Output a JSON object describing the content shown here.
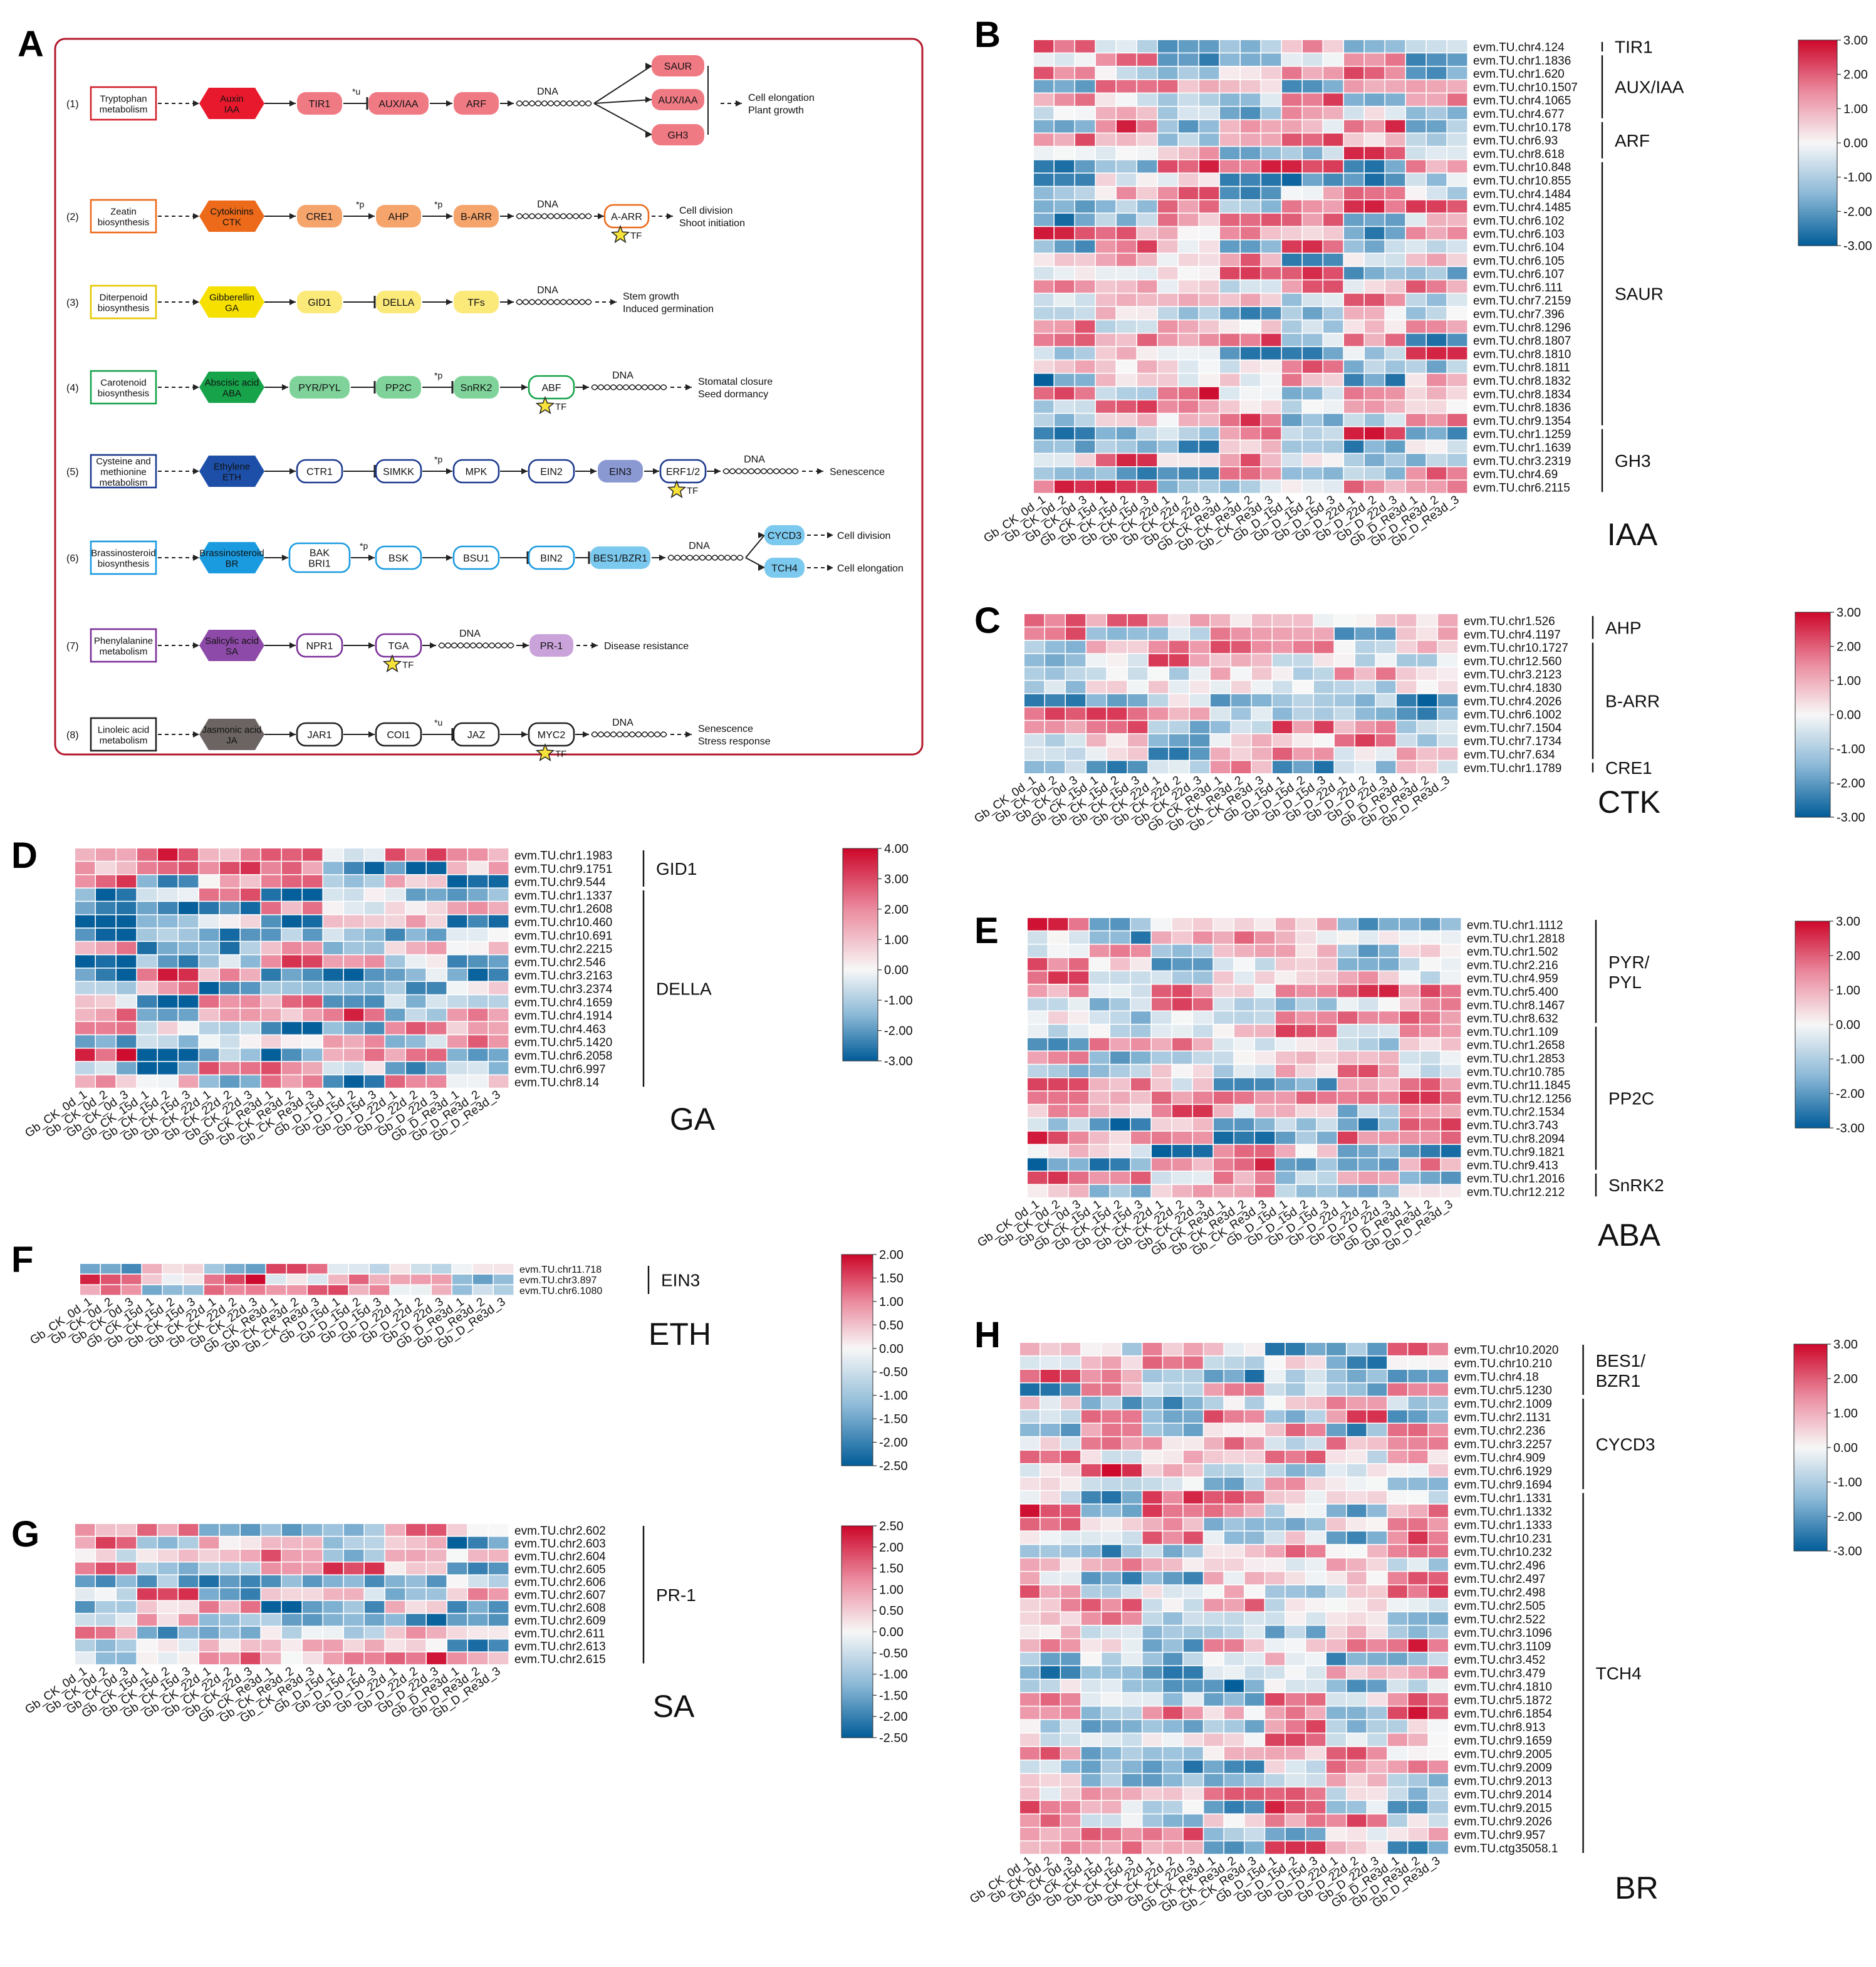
{
  "panel_labels": [
    "A",
    "B",
    "C",
    "D",
    "E",
    "F",
    "G",
    "H"
  ],
  "samples": [
    "Gb_CK_0d_1",
    "Gb_CK_0d_2",
    "Gb_CK_0d_3",
    "Gb_CK_15d_1",
    "Gb_CK_15d_2",
    "Gb_CK_15d_3",
    "Gb_CK_22d_1",
    "Gb_CK_22d_2",
    "Gb_CK_22d_3",
    "Gb_CK_Re3d_1",
    "Gb_CK_Re3d_2",
    "Gb_CK_Re3d_3",
    "Gb_D_15d_1",
    "Gb_D_15d_2",
    "Gb_D_15d_3",
    "Gb_D_22d_1",
    "Gb_D_22d_2",
    "Gb_D_22d_3",
    "Gb_D_Re3d_1",
    "Gb_D_Re3d_2",
    "Gb_D_Re3d_3"
  ],
  "pathways": [
    {
      "num": "(1)",
      "source": "Tryptophan\nmetabolism",
      "hormone": "Auxin\nIAA",
      "hcolor": "#e8192c",
      "ecolor": "#f07a84",
      "outline": "#d21f2b",
      "filled": true,
      "nodes": [
        "TIR1",
        "*u",
        "AUX/IAA",
        "ARF"
      ],
      "targets": [
        "SAUR",
        "AUX/IAA",
        "GH3"
      ],
      "tf": null,
      "effect": "Cell elongation\nPlant growth"
    },
    {
      "num": "(2)",
      "source": "Zeatin\nbiosynthesis",
      "hormone": "Cytokinins\nCTK",
      "hcolor": "#ec6a1a",
      "ecolor": "#f5a46c",
      "outline": "#ec6a1a",
      "filled": true,
      "nodes": [
        "CRE1",
        "*p",
        "AHP",
        "*p",
        "B-ARR"
      ],
      "targets": [
        "A-ARR"
      ],
      "tf": "A-ARR",
      "effect": "Cell division\nShoot initiation"
    },
    {
      "num": "(3)",
      "source": "Diterpenoid\nbiosynthesis",
      "hormone": "Gibberellin\nGA",
      "hcolor": "#f5e000",
      "ecolor": "#fbe97a",
      "outline": "#e6c800",
      "filled": true,
      "nodes": [
        "GID1",
        "DELLA",
        "TFs"
      ],
      "targets": [],
      "tf": null,
      "effect": "Stem growth\nInduced germination"
    },
    {
      "num": "(4)",
      "source": "Carotenoid\nbiosynthesis",
      "hormone": "Abscisic acid\nABA",
      "hcolor": "#16a34a",
      "ecolor": "#7fd39a",
      "outline": "#16a34a",
      "filled": true,
      "nodes": [
        "PYR/PYL",
        "PP2C",
        "*p",
        "SnRK2",
        "ABF"
      ],
      "targets": [],
      "tf": "ABF",
      "effect": "Stomatal closure\nSeed dormancy"
    },
    {
      "num": "(5)",
      "source": "Cysteine and\nmethionine\nmetabolism",
      "hormone": "Ethylene\nETH",
      "hcolor": "#1d4fa8",
      "ecolor": "#8b99d3",
      "outline": "#1d3a8f",
      "filled": false,
      "nodes": [
        "CTR1",
        "SIMKK",
        "*p",
        "MPK",
        "EIN2",
        "EIN3",
        "ERF1/2"
      ],
      "targets": [],
      "tf": "ERF1/2",
      "effect": "Senescence"
    },
    {
      "num": "(6)",
      "source": "Brassinosteroid\nbiosynthesis",
      "hormone": "Brassinosteroid\nBR",
      "hcolor": "#1a9be0",
      "ecolor": "#7cc9ef",
      "outline": "#1a9be0",
      "filled": false,
      "nodes": [
        "BAK\nBRI1",
        "*p",
        "BSK",
        "BSU1",
        "BIN2",
        "BES1/BZR1"
      ],
      "targets": [
        "CYCD3",
        "TCH4"
      ],
      "tf": null,
      "effect": "Cell division|Cell elongation"
    },
    {
      "num": "(7)",
      "source": "Phenylalanine\nmetabolism",
      "hormone": "Salicylic acid\nSA",
      "hcolor": "#8e4aa8",
      "ecolor": "#c9a3d9",
      "outline": "#7a2f98",
      "filled": false,
      "nodes": [
        "NPR1",
        "TGA"
      ],
      "targets": [
        "PR-1"
      ],
      "tf": "TGA",
      "effect": "Disease resistance"
    },
    {
      "num": "(8)",
      "source": "Linoleic acid\nmetabolism",
      "hormone": "Jasmonic acid\nJA",
      "hcolor": "#6b6462",
      "ecolor": "#aaa",
      "outline": "#222",
      "filled": false,
      "nodes": [
        "JAR1",
        "COI1",
        "*u",
        "JAZ",
        "MYC2"
      ],
      "targets": [],
      "tf": "MYC2",
      "effect": "Senescence\nStress response"
    }
  ],
  "dna_label": "DNA",
  "tf_label": "TF",
  "panel_a_effects": {
    "p1": [
      "Cell elongation",
      "Plant growth"
    ],
    "p2": [
      "Cell division",
      "Shoot initiation"
    ],
    "p3": [
      "Stem growth",
      "Induced germination"
    ],
    "p4": [
      "Stomatal closure",
      "Seed dormancy"
    ],
    "p5": [
      "Senescence"
    ],
    "p6": [
      "Cell division",
      "Cell elongation"
    ],
    "p7": [
      "Disease resistance"
    ],
    "p8": [
      "Senescence",
      "Stress response"
    ]
  },
  "chart_data": [
    {
      "panel": "B",
      "type": "heatmap",
      "title": "IAA",
      "vmin": -3.0,
      "vmax": 3.0,
      "colorbar_ticks": [
        "3.00",
        "2.00",
        "1.00",
        "0.00",
        "-1.00",
        "-2.00",
        "-3.00"
      ],
      "genes": [
        "evm.TU.chr4.124",
        "evm.TU.chr1.1836",
        "evm.TU.chr1.620",
        "evm.TU.chr10.1507",
        "evm.TU.chr4.1065",
        "evm.TU.chr4.677",
        "evm.TU.chr10.178",
        "evm.TU.chr6.93",
        "evm.TU.chr8.618",
        "evm.TU.chr10.848",
        "evm.TU.chr10.855",
        "evm.TU.chr4.1484",
        "evm.TU.chr4.1485",
        "evm.TU.chr6.102",
        "evm.TU.chr6.103",
        "evm.TU.chr6.104",
        "evm.TU.chr6.105",
        "evm.TU.chr6.107",
        "evm.TU.chr6.111",
        "evm.TU.chr7.2159",
        "evm.TU.chr7.396",
        "evm.TU.chr8.1296",
        "evm.TU.chr8.1807",
        "evm.TU.chr8.1810",
        "evm.TU.chr8.1811",
        "evm.TU.chr8.1832",
        "evm.TU.chr8.1834",
        "evm.TU.chr8.1836",
        "evm.TU.chr9.1354",
        "evm.TU.chr1.1259",
        "evm.TU.chr1.1639",
        "evm.TU.chr3.2319",
        "evm.TU.chr4.69",
        "evm.TU.chr6.2115"
      ],
      "groups": [
        {
          "name": "TIR1",
          "start": 0,
          "end": 0
        },
        {
          "name": "AUX/IAA",
          "start": 1,
          "end": 5
        },
        {
          "name": "ARF",
          "start": 6,
          "end": 8
        },
        {
          "name": "SAUR",
          "start": 9,
          "end": 28
        },
        {
          "name": "GH3",
          "start": 29,
          "end": 33
        }
      ],
      "seed": 11
    },
    {
      "panel": "C",
      "type": "heatmap",
      "title": "CTK",
      "vmin": -3.0,
      "vmax": 3.0,
      "colorbar_ticks": [
        "3.00",
        "2.00",
        "1.00",
        "0.00",
        "-1.00",
        "-2.00",
        "-3.00"
      ],
      "genes": [
        "evm.TU.chr1.526",
        "evm.TU.chr4.1197",
        "evm.TU.chr10.1727",
        "evm.TU.chr12.560",
        "evm.TU.chr3.2123",
        "evm.TU.chr4.1830",
        "evm.TU.chr4.2026",
        "evm.TU.chr6.1002",
        "evm.TU.chr7.1504",
        "evm.TU.chr7.1734",
        "evm.TU.chr7.634",
        "evm.TU.chr1.1789"
      ],
      "groups": [
        {
          "name": "AHP",
          "start": 0,
          "end": 1
        },
        {
          "name": "B-ARR",
          "start": 2,
          "end": 10
        },
        {
          "name": "CRE1",
          "start": 11,
          "end": 11
        }
      ],
      "seed": 23
    },
    {
      "panel": "D",
      "type": "heatmap",
      "title": "GA",
      "vmin": -3.0,
      "vmax": 4.0,
      "colorbar_ticks": [
        "4.00",
        "3.00",
        "2.00",
        "1.00",
        "0.00",
        "-1.00",
        "-2.00",
        "-3.00"
      ],
      "genes": [
        "evm.TU.chr1.1983",
        "evm.TU.chr9.1751",
        "evm.TU.chr9.544",
        "evm.TU.chr1.1337",
        "evm.TU.chr1.2608",
        "evm.TU.chr10.460",
        "evm.TU.chr10.691",
        "evm.TU.chr2.2215",
        "evm.TU.chr2.546",
        "evm.TU.chr3.2163",
        "evm.TU.chr3.2374",
        "evm.TU.chr4.1659",
        "evm.TU.chr4.1914",
        "evm.TU.chr4.463",
        "evm.TU.chr5.1420",
        "evm.TU.chr6.2058",
        "evm.TU.chr6.997",
        "evm.TU.chr8.14"
      ],
      "groups": [
        {
          "name": "GID1",
          "start": 0,
          "end": 2
        },
        {
          "name": "DELLA",
          "start": 3,
          "end": 17
        }
      ],
      "seed": 37
    },
    {
      "panel": "E",
      "type": "heatmap",
      "title": "ABA",
      "vmin": -3.0,
      "vmax": 3.0,
      "colorbar_ticks": [
        "3.00",
        "2.00",
        "1.00",
        "0.00",
        "-1.00",
        "-2.00",
        "-3.00"
      ],
      "genes": [
        "evm.TU.chr1.1112",
        "evm.TU.chr1.2818",
        "evm.TU.chr1.502",
        "evm.TU.chr2.216",
        "evm.TU.chr4.959",
        "evm.TU.chr5.400",
        "evm.TU.chr8.1467",
        "evm.TU.chr8.632",
        "evm.TU.chr1.109",
        "evm.TU.chr1.2658",
        "evm.TU.chr1.2853",
        "evm.TU.chr10.785",
        "evm.TU.chr11.1845",
        "evm.TU.chr12.1256",
        "evm.TU.chr2.1534",
        "evm.TU.chr3.743",
        "evm.TU.chr8.2094",
        "evm.TU.chr9.1821",
        "evm.TU.chr9.413",
        "evm.TU.chr1.2016",
        "evm.TU.chr12.212"
      ],
      "groups": [
        {
          "name": "PYR/\nPYL",
          "start": 0,
          "end": 7
        },
        {
          "name": "PP2C",
          "start": 8,
          "end": 18
        },
        {
          "name": "SnRK2",
          "start": 19,
          "end": 20
        }
      ],
      "seed": 41
    },
    {
      "panel": "F",
      "type": "heatmap",
      "title": "ETH",
      "vmin": -2.5,
      "vmax": 2.0,
      "colorbar_ticks": [
        "2.00",
        "1.50",
        "1.00",
        "0.50",
        "0.00",
        "-0.50",
        "-1.00",
        "-1.50",
        "-2.00",
        "-2.50"
      ],
      "genes": [
        "evm.TU.chr11.718",
        "evm.TU.chr3.897",
        "evm.TU.chr6.1080"
      ],
      "groups": [
        {
          "name": "EIN3",
          "start": 0,
          "end": 2
        }
      ],
      "seed": 53
    },
    {
      "panel": "G",
      "type": "heatmap",
      "title": "SA",
      "vmin": -2.5,
      "vmax": 2.5,
      "colorbar_ticks": [
        "2.50",
        "2.00",
        "1.50",
        "1.00",
        "0.50",
        "0.00",
        "-0.50",
        "-1.00",
        "-1.50",
        "-2.00",
        "-2.50"
      ],
      "genes": [
        "evm.TU.chr2.602",
        "evm.TU.chr2.603",
        "evm.TU.chr2.604",
        "evm.TU.chr2.605",
        "evm.TU.chr2.606",
        "evm.TU.chr2.607",
        "evm.TU.chr2.608",
        "evm.TU.chr2.609",
        "evm.TU.chr2.611",
        "evm.TU.chr2.613",
        "evm.TU.chr2.615"
      ],
      "groups": [
        {
          "name": "PR-1",
          "start": 0,
          "end": 10
        }
      ],
      "seed": 67
    },
    {
      "panel": "H",
      "type": "heatmap",
      "title": "BR",
      "vmin": -3.0,
      "vmax": 3.0,
      "colorbar_ticks": [
        "3.00",
        "2.00",
        "1.00",
        "0.00",
        "-1.00",
        "-2.00",
        "-3.00"
      ],
      "genes": [
        "evm.TU.chr10.2020",
        "evm.TU.chr10.210",
        "evm.TU.chr4.18",
        "evm.TU.chr5.1230",
        "evm.TU.chr2.1009",
        "evm.TU.chr2.1131",
        "evm.TU.chr2.236",
        "evm.TU.chr3.2257",
        "evm.TU.chr4.909",
        "evm.TU.chr6.1929",
        "evm.TU.chr9.1694",
        "evm.TU.chr1.1331",
        "evm.TU.chr1.1332",
        "evm.TU.chr1.1333",
        "evm.TU.chr10.231",
        "evm.TU.chr10.232",
        "evm.TU.chr2.496",
        "evm.TU.chr2.497",
        "evm.TU.chr2.498",
        "evm.TU.chr2.505",
        "evm.TU.chr2.522",
        "evm.TU.chr3.1096",
        "evm.TU.chr3.1109",
        "evm.TU.chr3.452",
        "evm.TU.chr3.479",
        "evm.TU.chr4.1810",
        "evm.TU.chr5.1872",
        "evm.TU.chr6.1854",
        "evm.TU.chr8.913",
        "evm.TU.chr9.1659",
        "evm.TU.chr9.2005",
        "evm.TU.chr9.2009",
        "evm.TU.chr9.2013",
        "evm.TU.chr9.2014",
        "evm.TU.chr9.2015",
        "evm.TU.chr9.2026",
        "evm.TU.chr9.957",
        "evm.TU.ctg35058.1"
      ],
      "groups": [
        {
          "name": "BES1/\nBZR1",
          "start": 0,
          "end": 3
        },
        {
          "name": "CYCD3",
          "start": 4,
          "end": 10
        },
        {
          "name": "TCH4",
          "start": 11,
          "end": 37
        }
      ],
      "seed": 79
    }
  ]
}
